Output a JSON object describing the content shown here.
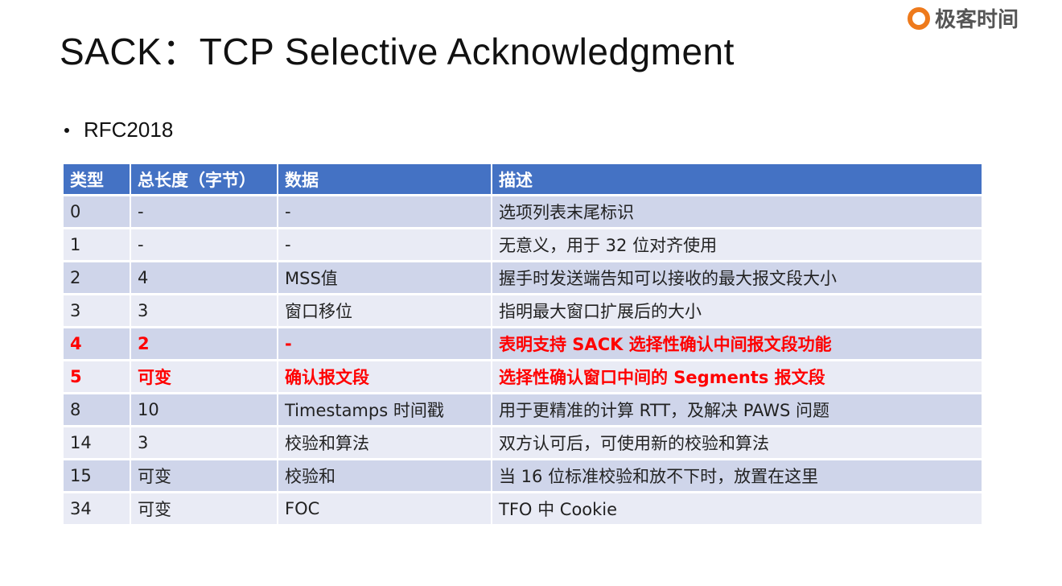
{
  "title": "SACK：TCP Selective Acknowledgment",
  "logo": {
    "text": "极客时间",
    "color": "#EE7A1C"
  },
  "bullet": "RFC2018",
  "table": {
    "headers": [
      "类型",
      "总长度（字节）",
      "数据",
      "描述"
    ],
    "header_color": "#4472C4",
    "highlight_color": "#FF0000",
    "rows": [
      {
        "cells": [
          "0",
          "-",
          "-",
          "选项列表末尾标识"
        ],
        "highlight": false
      },
      {
        "cells": [
          "1",
          "-",
          "-",
          "无意义，用于 32 位对齐使用"
        ],
        "highlight": false
      },
      {
        "cells": [
          "2",
          "4",
          "MSS值",
          "握手时发送端告知可以接收的最大报文段大小"
        ],
        "highlight": false
      },
      {
        "cells": [
          "3",
          "3",
          "窗口移位",
          "指明最大窗口扩展后的大小"
        ],
        "highlight": false
      },
      {
        "cells": [
          "4",
          "2",
          "-",
          "表明支持 SACK 选择性确认中间报文段功能"
        ],
        "highlight": true
      },
      {
        "cells": [
          "5",
          "可变",
          "确认报文段",
          "选择性确认窗口中间的 Segments 报文段"
        ],
        "highlight": true
      },
      {
        "cells": [
          "8",
          "10",
          "Timestamps 时间戳",
          "用于更精准的计算 RTT，及解决 PAWS 问题"
        ],
        "highlight": false
      },
      {
        "cells": [
          "14",
          "3",
          "校验和算法",
          "双方认可后，可使用新的校验和算法"
        ],
        "highlight": false
      },
      {
        "cells": [
          "15",
          "可变",
          "校验和",
          "当 16 位标准校验和放不下时，放置在这里"
        ],
        "highlight": false
      },
      {
        "cells": [
          "34",
          "可变",
          "FOC",
          "TFO 中 Cookie"
        ],
        "highlight": false
      }
    ]
  }
}
